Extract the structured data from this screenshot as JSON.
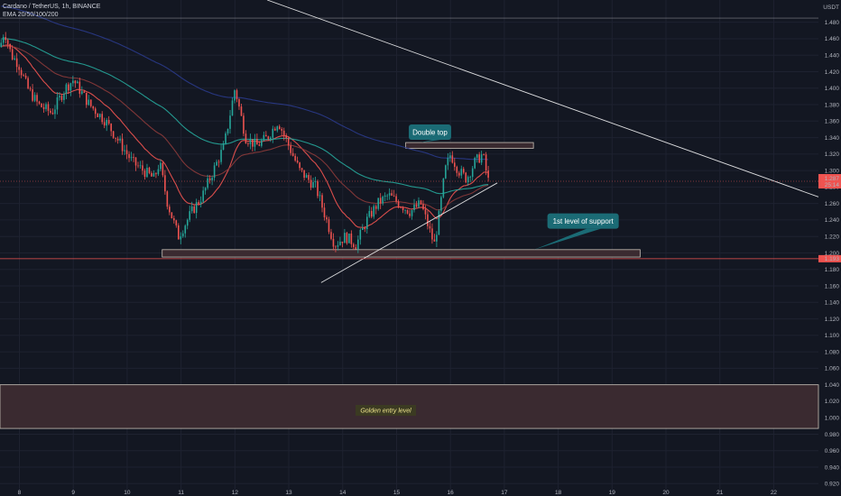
{
  "header": {
    "symbol_line": "Cardano / TetherUS, 1h, BINANCE",
    "indicator_line": "EMA 20/50/100/200"
  },
  "price_scale": {
    "currency": "USDT",
    "last_price_label": "1.287",
    "countdown_label": "25:14",
    "support_price_label": "1.193"
  },
  "annotations": {
    "double_top": "Double top",
    "support": "1st level of support",
    "golden_entry": "Golden entry level"
  },
  "colors": {
    "background": "#131722",
    "bull": "#26a69a",
    "bear": "#ef5350",
    "ema20": "#ef5350",
    "ema50": "#8b3a3a",
    "ema100": "#26a69a",
    "ema200": "#2a3a8a",
    "callout": "#1b6b75",
    "zone_fill": "#3a2a30",
    "trendline": "#ffffff",
    "last_price": "#ef5350"
  },
  "chart_data": {
    "type": "candlestick",
    "title": "Cardano / TetherUS, 1h, BINANCE",
    "ylim": [
      0.905,
      1.507
    ],
    "x_range": [
      7.64,
      22.83
    ],
    "y_ticks": [
      1.48,
      1.46,
      1.44,
      1.42,
      1.4,
      1.38,
      1.36,
      1.34,
      1.32,
      1.3,
      1.28,
      1.26,
      1.24,
      1.22,
      1.2,
      1.18,
      1.16,
      1.14,
      1.12,
      1.1,
      1.08,
      1.06,
      1.04,
      1.02,
      1.0,
      0.98,
      0.96,
      0.94,
      0.92
    ],
    "y_tick_labels": [
      "1.480",
      "1.460",
      "1.440",
      "1.420",
      "1.400",
      "1.380",
      "1.360",
      "1.340",
      "1.320",
      "1.300",
      "1.280",
      "1.260",
      "1.240",
      "1.220",
      "1.200",
      "1.180",
      "1.160",
      "1.140",
      "1.120",
      "1.100",
      "1.080",
      "1.060",
      "1.040",
      "1.020",
      "1.000",
      "0.980",
      "0.960",
      "0.940",
      "0.920"
    ],
    "x_ticks": [
      8,
      9,
      10,
      11,
      12,
      13,
      14,
      15,
      16,
      17,
      18,
      19,
      20,
      21,
      22
    ],
    "x_tick_labels": [
      "8",
      "9",
      "10",
      "11",
      "12",
      "13",
      "14",
      "15",
      "16",
      "17",
      "18",
      "19",
      "20",
      "21",
      "22"
    ],
    "price_path": [
      {
        "x": 7.64,
        "y": 1.45
      },
      {
        "x": 7.72,
        "y": 1.47
      },
      {
        "x": 7.85,
        "y": 1.44
      },
      {
        "x": 7.98,
        "y": 1.43
      },
      {
        "x": 8.15,
        "y": 1.4
      },
      {
        "x": 8.35,
        "y": 1.38
      },
      {
        "x": 8.6,
        "y": 1.37
      },
      {
        "x": 8.85,
        "y": 1.4
      },
      {
        "x": 9.0,
        "y": 1.41
      },
      {
        "x": 9.3,
        "y": 1.38
      },
      {
        "x": 9.6,
        "y": 1.36
      },
      {
        "x": 9.9,
        "y": 1.33
      },
      {
        "x": 10.1,
        "y": 1.31
      },
      {
        "x": 10.3,
        "y": 1.3
      },
      {
        "x": 10.5,
        "y": 1.29
      },
      {
        "x": 10.6,
        "y": 1.31
      },
      {
        "x": 10.75,
        "y": 1.26
      },
      {
        "x": 10.95,
        "y": 1.22
      },
      {
        "x": 11.2,
        "y": 1.25
      },
      {
        "x": 11.4,
        "y": 1.27
      },
      {
        "x": 11.6,
        "y": 1.3
      },
      {
        "x": 11.8,
        "y": 1.33
      },
      {
        "x": 12.0,
        "y": 1.4
      },
      {
        "x": 12.2,
        "y": 1.34
      },
      {
        "x": 12.4,
        "y": 1.33
      },
      {
        "x": 12.6,
        "y": 1.34
      },
      {
        "x": 12.8,
        "y": 1.36
      },
      {
        "x": 13.0,
        "y": 1.33
      },
      {
        "x": 13.2,
        "y": 1.3
      },
      {
        "x": 13.5,
        "y": 1.28
      },
      {
        "x": 13.7,
        "y": 1.24
      },
      {
        "x": 13.85,
        "y": 1.21
      },
      {
        "x": 14.05,
        "y": 1.22
      },
      {
        "x": 14.25,
        "y": 1.21
      },
      {
        "x": 14.45,
        "y": 1.24
      },
      {
        "x": 14.65,
        "y": 1.26
      },
      {
        "x": 14.85,
        "y": 1.27
      },
      {
        "x": 15.05,
        "y": 1.26
      },
      {
        "x": 15.25,
        "y": 1.25
      },
      {
        "x": 15.45,
        "y": 1.26
      },
      {
        "x": 15.6,
        "y": 1.23
      },
      {
        "x": 15.7,
        "y": 1.21
      },
      {
        "x": 15.8,
        "y": 1.25
      },
      {
        "x": 15.9,
        "y": 1.3
      },
      {
        "x": 16.0,
        "y": 1.32
      },
      {
        "x": 16.15,
        "y": 1.3
      },
      {
        "x": 16.3,
        "y": 1.29
      },
      {
        "x": 16.45,
        "y": 1.31
      },
      {
        "x": 16.6,
        "y": 1.32
      },
      {
        "x": 16.75,
        "y": 1.3
      },
      {
        "x": 16.7,
        "y": 1.287
      }
    ],
    "double_top_zone": {
      "x": [
        15.17,
        17.54
      ],
      "y": [
        1.327,
        1.334
      ]
    },
    "support_zone": {
      "x": [
        10.65,
        19.52
      ],
      "y": [
        1.195,
        1.204
      ]
    },
    "golden_entry_zone": {
      "y": [
        0.987,
        1.04
      ]
    },
    "support_line_price": 1.193,
    "last_price": 1.287,
    "trendlines": [
      {
        "name": "descending-resistance",
        "points": [
          {
            "x": 12.6,
            "y": 1.507
          },
          {
            "x": 22.83,
            "y": 1.268
          }
        ]
      },
      {
        "name": "ascending-support",
        "points": [
          {
            "x": 13.6,
            "y": 1.164
          },
          {
            "x": 16.87,
            "y": 1.285
          }
        ]
      },
      {
        "name": "horizontal-top",
        "points": [
          {
            "x": 7.64,
            "y": 1.485
          },
          {
            "x": 22.83,
            "y": 1.485
          }
        ]
      }
    ],
    "series": [
      {
        "name": "EMA 20",
        "color": "#ef5350"
      },
      {
        "name": "EMA 50",
        "color": "#8b3a3a"
      },
      {
        "name": "EMA 100",
        "color": "#26a69a"
      },
      {
        "name": "EMA 200",
        "color": "#2a3a8a"
      }
    ]
  }
}
